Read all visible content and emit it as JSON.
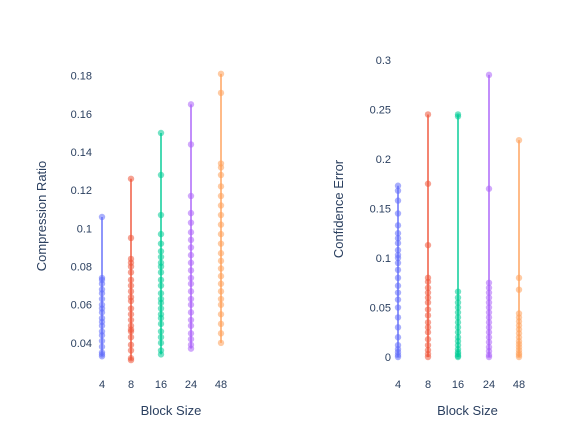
{
  "chart_data": [
    {
      "type": "scatter",
      "subtype": "strip-with-range",
      "xlabel": "Block Size",
      "ylabel": "Compression Ratio",
      "categories": [
        "4",
        "8",
        "16",
        "24",
        "48"
      ],
      "yticks": [
        0.04,
        0.06,
        0.08,
        0.1,
        0.12,
        0.14,
        0.16,
        0.18
      ],
      "ytick_labels": [
        "0.04",
        "0.06",
        "0.08",
        "0.1",
        "0.12",
        "0.14",
        "0.16",
        "0.18"
      ],
      "ylim": [
        0.03,
        0.183
      ],
      "grid": false,
      "series": [
        {
          "category": "4",
          "color": "#636efa",
          "values": [
            0.033,
            0.034,
            0.035,
            0.038,
            0.041,
            0.044,
            0.046,
            0.049,
            0.051,
            0.053,
            0.056,
            0.058,
            0.06,
            0.063,
            0.066,
            0.068,
            0.071,
            0.073,
            0.074,
            0.106
          ]
        },
        {
          "category": "8",
          "color": "#ef553b",
          "values": [
            0.031,
            0.032,
            0.036,
            0.039,
            0.043,
            0.046,
            0.047,
            0.049,
            0.052,
            0.055,
            0.058,
            0.062,
            0.064,
            0.067,
            0.07,
            0.073,
            0.077,
            0.08,
            0.082,
            0.084,
            0.095,
            0.126
          ]
        },
        {
          "category": "16",
          "color": "#00cc96",
          "values": [
            0.034,
            0.036,
            0.04,
            0.043,
            0.046,
            0.05,
            0.053,
            0.055,
            0.058,
            0.061,
            0.063,
            0.066,
            0.07,
            0.073,
            0.077,
            0.08,
            0.082,
            0.085,
            0.088,
            0.092,
            0.097,
            0.107,
            0.128,
            0.15
          ]
        },
        {
          "category": "24",
          "color": "#ab63fa",
          "values": [
            0.037,
            0.039,
            0.042,
            0.045,
            0.049,
            0.052,
            0.056,
            0.06,
            0.063,
            0.067,
            0.071,
            0.074,
            0.078,
            0.082,
            0.086,
            0.09,
            0.094,
            0.098,
            0.103,
            0.108,
            0.117,
            0.144,
            0.165
          ]
        },
        {
          "category": "48",
          "color": "#ffa15a",
          "values": [
            0.04,
            0.045,
            0.05,
            0.055,
            0.06,
            0.063,
            0.067,
            0.071,
            0.075,
            0.079,
            0.083,
            0.087,
            0.092,
            0.097,
            0.102,
            0.107,
            0.112,
            0.117,
            0.122,
            0.128,
            0.132,
            0.134,
            0.171,
            0.181
          ]
        }
      ]
    },
    {
      "type": "scatter",
      "subtype": "strip-with-range",
      "xlabel": "Block Size",
      "ylabel": "Confidence Error",
      "categories": [
        "4",
        "8",
        "16",
        "24",
        "48"
      ],
      "yticks": [
        0,
        0.05,
        0.1,
        0.15,
        0.2,
        0.25,
        0.3
      ],
      "ytick_labels": [
        "0",
        "0.05",
        "0.1",
        "0.15",
        "0.2",
        "0.25",
        "0.3"
      ],
      "ylim": [
        -0.003,
        0.302
      ],
      "grid": false,
      "series": [
        {
          "category": "4",
          "color": "#636efa",
          "values": [
            0.0,
            0.002,
            0.005,
            0.008,
            0.012,
            0.02,
            0.03,
            0.04,
            0.05,
            0.058,
            0.065,
            0.072,
            0.08,
            0.088,
            0.095,
            0.1,
            0.103,
            0.108,
            0.115,
            0.12,
            0.125,
            0.133,
            0.145,
            0.158,
            0.168,
            0.173
          ]
        },
        {
          "category": "8",
          "color": "#ef553b",
          "values": [
            0.0,
            0.003,
            0.007,
            0.012,
            0.018,
            0.025,
            0.03,
            0.035,
            0.042,
            0.048,
            0.055,
            0.06,
            0.065,
            0.07,
            0.076,
            0.08,
            0.113,
            0.175,
            0.245
          ]
        },
        {
          "category": "16",
          "color": "#00cc96",
          "values": [
            0.0,
            0.001,
            0.003,
            0.005,
            0.008,
            0.012,
            0.016,
            0.02,
            0.025,
            0.03,
            0.035,
            0.04,
            0.045,
            0.05,
            0.055,
            0.06,
            0.066,
            0.243,
            0.245
          ]
        },
        {
          "category": "24",
          "color": "#ab63fa",
          "values": [
            0.0,
            0.002,
            0.006,
            0.01,
            0.015,
            0.02,
            0.025,
            0.03,
            0.035,
            0.04,
            0.045,
            0.05,
            0.055,
            0.06,
            0.065,
            0.07,
            0.075,
            0.17,
            0.285
          ]
        },
        {
          "category": "48",
          "color": "#ffa15a",
          "values": [
            0.0,
            0.002,
            0.004,
            0.007,
            0.01,
            0.013,
            0.016,
            0.02,
            0.024,
            0.028,
            0.032,
            0.036,
            0.04,
            0.044,
            0.068,
            0.08,
            0.219
          ]
        }
      ]
    }
  ]
}
